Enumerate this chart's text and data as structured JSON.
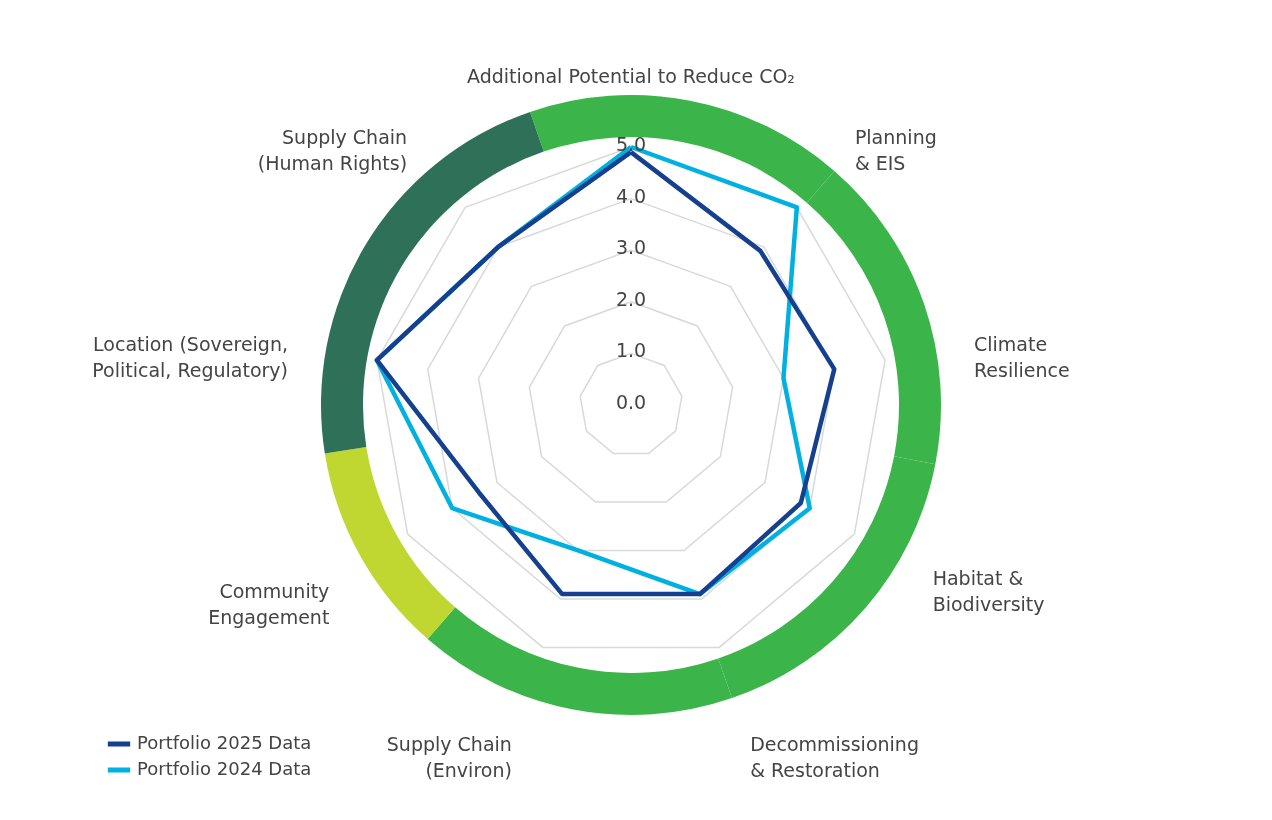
{
  "chart_data": {
    "type": "radar",
    "categories": [
      "Additional Potential to Reduce CO₂",
      "Planning\n& EIS",
      "Climate\nResilience",
      "Habitat &\nBiodiversity",
      "Decommissioning\n& Restoration",
      "Supply Chain\n(Environ)",
      "Community\nEngagement",
      "Location (Sovereign,\nPolitical, Regulatory)",
      "Supply Chain\n(Human Rights)"
    ],
    "series": [
      {
        "name": "Portfolio 2025 Data",
        "color": "#153f8f",
        "values": [
          4.9,
          3.9,
          4.0,
          3.8,
          3.9,
          3.9,
          3.4,
          5.0,
          4.0
        ]
      },
      {
        "name": "Portfolio 2024 Data",
        "color": "#00b0e0",
        "values": [
          5.0,
          5.0,
          3.0,
          4.0,
          3.9,
          3.0,
          4.0,
          5.0,
          4.0
        ]
      }
    ],
    "ylim": [
      0,
      5
    ],
    "yticks": [
      {
        "value": 0,
        "label": "0.0"
      },
      {
        "value": 1,
        "label": "1.0"
      },
      {
        "value": 2,
        "label": "2.0"
      },
      {
        "value": 3,
        "label": "3.0"
      },
      {
        "value": 4,
        "label": "4.0"
      },
      {
        "value": 5,
        "label": "5.0"
      }
    ],
    "grid": true,
    "legend": "bottom left",
    "marker": "none"
  }
}
